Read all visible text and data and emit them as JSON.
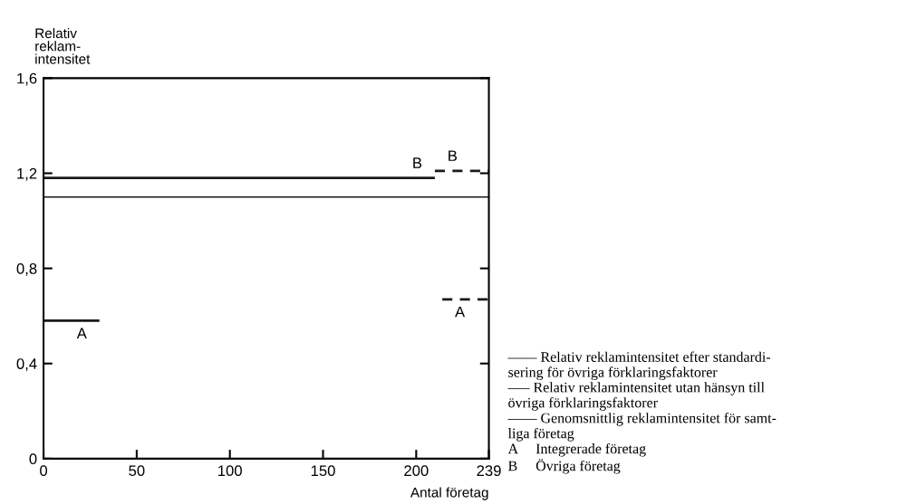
{
  "chart_data": {
    "type": "line",
    "ylabel": "Relativ\nreklam-\nintensitet",
    "xlabel": "Antal företag",
    "xlim": [
      0,
      239
    ],
    "xticks": [
      0,
      50,
      100,
      150,
      200,
      239
    ],
    "ylim": [
      0,
      1.6
    ],
    "yticks": [
      {
        "value": 0,
        "label": "0"
      },
      {
        "value": 0.4,
        "label": "0,4"
      },
      {
        "value": 0.8,
        "label": "0,8"
      },
      {
        "value": 1.2,
        "label": "1,2"
      },
      {
        "value": 1.6,
        "label": "1,6"
      }
    ],
    "series": [
      {
        "name": "B",
        "color": "#1a1a1a",
        "line_style": "solid",
        "x": [
          0,
          210
        ],
        "values": [
          1.18,
          1.18
        ]
      },
      {
        "name": "B",
        "color": "#1a1a1a",
        "line_style": "dashed",
        "x": [
          210,
          239
        ],
        "values": [
          1.21,
          1.21
        ]
      },
      {
        "name": "A",
        "color": "#1a1a1a",
        "line_style": "solid",
        "x": [
          0,
          30
        ],
        "values": [
          0.58,
          0.58
        ]
      },
      {
        "name": "A",
        "color": "#1a1a1a",
        "line_style": "dashed",
        "x": [
          214,
          239
        ],
        "values": [
          0.67,
          0.67
        ]
      }
    ],
    "ref_lines": [
      {
        "axis": "y",
        "value": 1.1,
        "color": "#1a1a1a",
        "line_style": "solid"
      }
    ],
    "grid": false,
    "legend": false,
    "marker": "none",
    "annotations": [
      "—— Relativ reklamintensitet efter standardi-\nsering för övriga förklaringsfaktorer\n––– Relativ reklamintensitet utan hänsyn till\növriga förklaringsfaktorer\n—— Genomsnittlig reklamintensitet för samt-\nliga företag\nA     Integrerade företag\nB     Övriga företag"
    ]
  }
}
